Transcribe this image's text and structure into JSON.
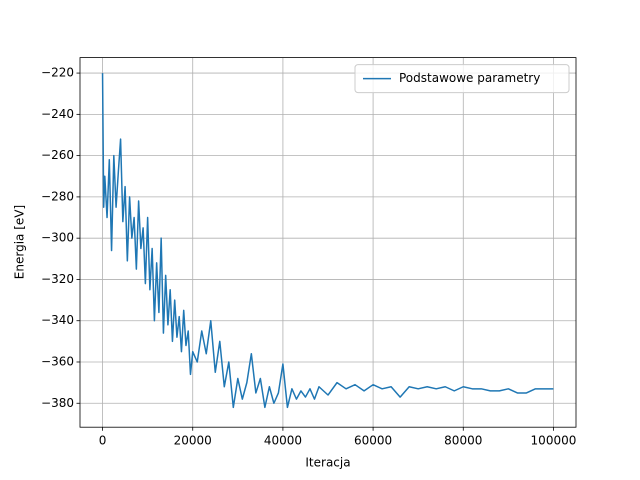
{
  "chart_data": {
    "type": "line",
    "xlabel": "Iteracja",
    "ylabel": "Energia [eV]",
    "x": [
      0,
      250,
      500,
      1000,
      1500,
      2000,
      2500,
      3000,
      3500,
      4000,
      4500,
      5000,
      5500,
      6000,
      6500,
      7000,
      7500,
      8000,
      8500,
      9000,
      9500,
      10000,
      10500,
      11000,
      11500,
      12000,
      12500,
      13000,
      13500,
      14000,
      14500,
      15000,
      15500,
      16000,
      16500,
      17000,
      17500,
      18000,
      18500,
      19000,
      19500,
      20000,
      21000,
      22000,
      23000,
      24000,
      25000,
      26000,
      27000,
      28000,
      29000,
      30000,
      31000,
      32000,
      33000,
      34000,
      35000,
      36000,
      37000,
      38000,
      39000,
      40000,
      41000,
      42000,
      43000,
      44000,
      45000,
      46000,
      47000,
      48000,
      50000,
      52000,
      54000,
      56000,
      58000,
      60000,
      62000,
      64000,
      66000,
      68000,
      70000,
      72000,
      74000,
      76000,
      78000,
      80000,
      82000,
      84000,
      86000,
      88000,
      90000,
      92000,
      94000,
      96000,
      98000,
      100000
    ],
    "series": [
      {
        "name": "Podstawowe parametry",
        "color": "#1f77b4",
        "values": [
          -220,
          -285,
          -270,
          -290,
          -262,
          -306,
          -260,
          -285,
          -268,
          -252,
          -292,
          -275,
          -311,
          -280,
          -300,
          -290,
          -315,
          -282,
          -305,
          -295,
          -322,
          -290,
          -325,
          -305,
          -340,
          -312,
          -336,
          -300,
          -346,
          -318,
          -342,
          -325,
          -350,
          -330,
          -348,
          -338,
          -355,
          -335,
          -352,
          -345,
          -366,
          -355,
          -360,
          -345,
          -356,
          -340,
          -365,
          -350,
          -372,
          -360,
          -382,
          -368,
          -378,
          -370,
          -356,
          -375,
          -368,
          -382,
          -372,
          -380,
          -375,
          -361,
          -382,
          -373,
          -378,
          -374,
          -377,
          -373,
          -378,
          -372,
          -376,
          -370,
          -373,
          -371,
          -374,
          -371,
          -373,
          -372,
          -377,
          -372,
          -373,
          -372,
          -373,
          -372,
          -374,
          -372,
          -373,
          -373,
          -374,
          -374,
          -373,
          -375,
          -375,
          -373,
          -373,
          -373
        ]
      }
    ],
    "xlim": [
      -5000,
      105000
    ],
    "ylim": [
      -391.6,
      -212.5
    ],
    "xticks": [
      0,
      20000,
      40000,
      60000,
      80000,
      100000
    ],
    "yticks": [
      {
        "value": -380,
        "label": "−380"
      },
      {
        "value": -360,
        "label": "−360"
      },
      {
        "value": -340,
        "label": "−340"
      },
      {
        "value": -320,
        "label": "−320"
      },
      {
        "value": -300,
        "label": "−300"
      },
      {
        "value": -280,
        "label": "−280"
      },
      {
        "value": -260,
        "label": "−260"
      },
      {
        "value": -240,
        "label": "−240"
      },
      {
        "value": -220,
        "label": "−220"
      }
    ],
    "grid": true,
    "legend": "upper right"
  }
}
